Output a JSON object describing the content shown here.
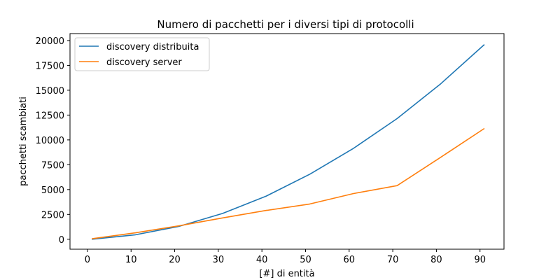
{
  "chart_data": {
    "type": "line",
    "title": "Numero di pacchetti per i diversi tipi di protocolli",
    "xlabel": "[#] di entità",
    "ylabel": "pacchetti scambiati",
    "xlim": [
      -4,
      95.5
    ],
    "ylim": [
      -1000,
      20700
    ],
    "xticks": [
      0,
      10,
      20,
      30,
      40,
      50,
      60,
      70,
      80,
      90
    ],
    "xtick_labels": [
      "0",
      "10",
      "20",
      "30",
      "40",
      "50",
      "60",
      "70",
      "80",
      "90"
    ],
    "yticks": [
      0,
      2500,
      5000,
      7500,
      10000,
      12500,
      15000,
      17500,
      20000
    ],
    "ytick_labels": [
      "0",
      "2500",
      "5000",
      "7500",
      "10000",
      "12500",
      "15000",
      "17500",
      "20000"
    ],
    "grid": false,
    "legend_position": "top-left",
    "x": [
      1,
      11,
      21,
      31,
      41,
      51,
      61,
      71,
      81,
      91
    ],
    "series": [
      {
        "name": "discovery distribuita",
        "color": "#1f77b4",
        "values": [
          0,
          450,
          1300,
          2600,
          4350,
          6550,
          9150,
          12150,
          15650,
          19600
        ]
      },
      {
        "name": "discovery server",
        "color": "#ff7f0e",
        "values": [
          50,
          650,
          1350,
          2150,
          2900,
          3550,
          4600,
          5400,
          8250,
          11150
        ]
      }
    ]
  }
}
